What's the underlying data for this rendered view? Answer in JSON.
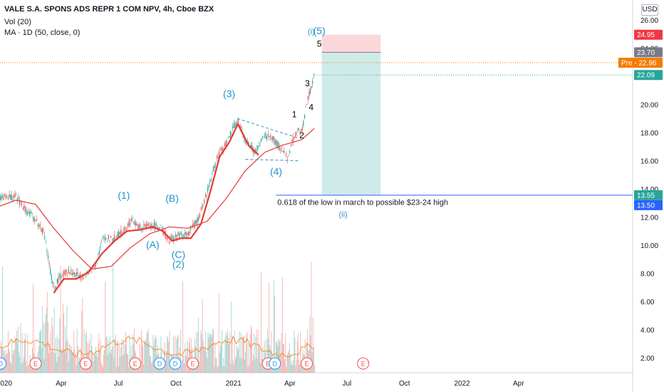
{
  "header": {
    "title": "VALE S.A. SPONS ADS REPR 1 COM NPV, 4h, Cboe BZX",
    "volume_indicator": "Vol (20)",
    "ma_indicator": "MA · 1D (50, close, 0)"
  },
  "currency": "USD",
  "colors": {
    "up": "#26a69a",
    "down": "#ef5350",
    "ma": "#e53935",
    "wave_labels": "#2196c8",
    "pre": "#f57c00",
    "last": "#131722"
  },
  "chart_data": {
    "type": "candlestick",
    "ylim": [
      0.8,
      27.0
    ],
    "y_ticks": [
      "26.00",
      "24.00",
      "22.00",
      "20.00",
      "18.00",
      "16.00",
      "14.00",
      "12.00",
      "10.00",
      "8.00",
      "6.00",
      "4.00",
      "2.00"
    ],
    "x_ticks": [
      "2020",
      "Apr",
      "Jul",
      "Oct",
      "2021",
      "Apr",
      "Jul",
      "Oct",
      "2022",
      "Apr"
    ],
    "x_tick_dates": [
      "2020-01-01",
      "2020-04-01",
      "2020-07-01",
      "2020-10-01",
      "2021-01-01",
      "2021-04-01",
      "2021-07-01",
      "2021-10-01",
      "2022-01-01",
      "2022-04-01"
    ],
    "price_path": [
      {
        "date": "2019-12-20",
        "price": 13.3
      },
      {
        "date": "2020-01-05",
        "price": 13.5
      },
      {
        "date": "2020-01-20",
        "price": 13.4
      },
      {
        "date": "2020-02-05",
        "price": 12.5
      },
      {
        "date": "2020-02-20",
        "price": 11.8
      },
      {
        "date": "2020-03-05",
        "price": 10.8
      },
      {
        "date": "2020-03-15",
        "price": 8.0
      },
      {
        "date": "2020-03-20",
        "price": 6.9
      },
      {
        "date": "2020-03-28",
        "price": 7.6
      },
      {
        "date": "2020-04-10",
        "price": 8.2
      },
      {
        "date": "2020-04-25",
        "price": 7.9
      },
      {
        "date": "2020-05-10",
        "price": 7.8
      },
      {
        "date": "2020-05-25",
        "price": 8.6
      },
      {
        "date": "2020-06-08",
        "price": 10.6
      },
      {
        "date": "2020-06-22",
        "price": 10.4
      },
      {
        "date": "2020-07-08",
        "price": 11.0
      },
      {
        "date": "2020-07-22",
        "price": 11.8
      },
      {
        "date": "2020-08-05",
        "price": 11.2
      },
      {
        "date": "2020-08-20",
        "price": 11.4
      },
      {
        "date": "2020-09-05",
        "price": 11.3
      },
      {
        "date": "2020-09-20",
        "price": 10.4
      },
      {
        "date": "2020-10-05",
        "price": 10.7
      },
      {
        "date": "2020-10-20",
        "price": 10.8
      },
      {
        "date": "2020-11-05",
        "price": 11.8
      },
      {
        "date": "2020-11-20",
        "price": 13.8
      },
      {
        "date": "2020-12-05",
        "price": 16.2
      },
      {
        "date": "2020-12-20",
        "price": 17.2
      },
      {
        "date": "2021-01-07",
        "price": 18.9
      },
      {
        "date": "2021-01-20",
        "price": 17.4
      },
      {
        "date": "2021-02-05",
        "price": 16.6
      },
      {
        "date": "2021-02-20",
        "price": 17.8
      },
      {
        "date": "2021-03-05",
        "price": 17.6
      },
      {
        "date": "2021-03-18",
        "price": 16.8
      },
      {
        "date": "2021-03-28",
        "price": 16.3
      },
      {
        "date": "2021-04-05",
        "price": 17.3
      },
      {
        "date": "2021-04-12",
        "price": 18.2
      },
      {
        "date": "2021-04-20",
        "price": 18.0
      },
      {
        "date": "2021-04-28",
        "price": 20.2
      },
      {
        "date": "2021-05-04",
        "price": 21.0
      },
      {
        "date": "2021-05-10",
        "price": 22.1
      }
    ],
    "ma_path": [
      {
        "date": "2019-12-20",
        "value": 12.7
      },
      {
        "date": "2020-01-20",
        "value": 13.2
      },
      {
        "date": "2020-02-20",
        "value": 12.9
      },
      {
        "date": "2020-03-20",
        "value": 11.2
      },
      {
        "date": "2020-04-20",
        "value": 9.6
      },
      {
        "date": "2020-05-20",
        "value": 8.3
      },
      {
        "date": "2020-06-20",
        "value": 8.5
      },
      {
        "date": "2020-07-20",
        "value": 9.8
      },
      {
        "date": "2020-08-20",
        "value": 10.8
      },
      {
        "date": "2020-09-20",
        "value": 11.3
      },
      {
        "date": "2020-10-20",
        "value": 11.2
      },
      {
        "date": "2020-11-20",
        "value": 11.7
      },
      {
        "date": "2020-12-20",
        "value": 13.3
      },
      {
        "date": "2021-01-20",
        "value": 15.3
      },
      {
        "date": "2021-02-20",
        "value": 16.6
      },
      {
        "date": "2021-03-20",
        "value": 17.1
      },
      {
        "date": "2021-04-20",
        "value": 17.5
      },
      {
        "date": "2021-05-10",
        "value": 18.3
      }
    ],
    "ma_red_smooth_path": [
      {
        "date": "2020-03-20",
        "value": 6.6
      },
      {
        "date": "2020-04-05",
        "value": 7.6
      },
      {
        "date": "2020-04-25",
        "value": 7.6
      },
      {
        "date": "2020-05-15",
        "value": 8.1
      },
      {
        "date": "2020-06-05",
        "value": 9.4
      },
      {
        "date": "2020-06-25",
        "value": 10.3
      },
      {
        "date": "2020-07-15",
        "value": 11.0
      },
      {
        "date": "2020-08-05",
        "value": 11.1
      },
      {
        "date": "2020-08-25",
        "value": 11.3
      },
      {
        "date": "2020-09-10",
        "value": 11.0
      },
      {
        "date": "2020-09-25",
        "value": 10.3
      },
      {
        "date": "2020-10-10",
        "value": 10.5
      },
      {
        "date": "2020-10-25",
        "value": 10.5
      },
      {
        "date": "2020-11-10",
        "value": 11.5
      },
      {
        "date": "2020-11-25",
        "value": 13.8
      },
      {
        "date": "2020-12-10",
        "value": 16.3
      },
      {
        "date": "2020-12-25",
        "value": 17.3
      },
      {
        "date": "2021-01-08",
        "value": 18.6
      },
      {
        "date": "2021-01-25",
        "value": 17.1
      },
      {
        "date": "2021-02-10",
        "value": 16.4
      }
    ],
    "wave_labels": [
      {
        "text": "(1)",
        "date": "2020-07-10",
        "price": 13.3
      },
      {
        "text": "(A)",
        "date": "2020-08-25",
        "price": 9.8
      },
      {
        "text": "(B)",
        "date": "2020-09-25",
        "price": 13.1
      },
      {
        "text": "(C)",
        "date": "2020-10-05",
        "price": 9.1
      },
      {
        "text": "(2)",
        "date": "2020-10-05",
        "price": 8.4
      },
      {
        "text": "(3)",
        "date": "2020-12-25",
        "price": 20.5
      },
      {
        "text": "(4)",
        "date": "2021-03-10",
        "price": 15.0
      },
      {
        "text": "(5)",
        "date": "2021-05-18",
        "price": 25.0
      }
    ],
    "small_wave_labels": [
      {
        "text": "(i)",
        "date": "2021-05-05",
        "price": 25.0
      },
      {
        "text": "(ii)",
        "date": "2021-06-25",
        "price": 12.0
      }
    ],
    "sub_wave_labels": [
      {
        "text": "5",
        "date": "2021-05-18",
        "price": 24.1
      },
      {
        "text": "3",
        "date": "2021-04-29",
        "price": 21.3
      },
      {
        "text": "1",
        "date": "2021-04-08",
        "price": 19.1
      },
      {
        "text": "4",
        "date": "2021-05-05",
        "price": 19.6
      },
      {
        "text": "2",
        "date": "2021-04-20",
        "price": 17.6
      }
    ],
    "position": {
      "start": "2021-05-22",
      "end": "2021-08-24",
      "entry": 23.7,
      "stop": 24.95,
      "target": 13.55
    },
    "horizontal_lines": [
      {
        "price": 13.55,
        "start": "2021-03-10"
      }
    ],
    "annotation": {
      "text": "0.618 of the low in march to possible $23-24 high",
      "date": "2021-03-12",
      "price": 12.85
    },
    "price_labels": [
      {
        "text": "24.95",
        "price": 24.95,
        "color": "#f23645"
      },
      {
        "text": "23.70",
        "price": 23.7,
        "color": "#787b86"
      },
      {
        "text": "Pre - 22.96",
        "price": 22.96,
        "color": "#f57c00"
      },
      {
        "text": "22.09",
        "price": 22.09,
        "color": "#26a69a"
      },
      {
        "text": "13.55",
        "price": 13.55,
        "color": "#26a69a"
      },
      {
        "text": "13.50",
        "price": 13.5,
        "color": "#2962ff"
      }
    ],
    "events": [
      {
        "text": "D",
        "date": "2019-12-26",
        "color": "#2196f3"
      },
      {
        "text": "E",
        "date": "2020-02-20",
        "color": "#ef5350"
      },
      {
        "text": "E",
        "date": "2020-05-10",
        "color": "#ef5350"
      },
      {
        "text": "E",
        "date": "2020-07-28",
        "color": "#ef5350"
      },
      {
        "text": "D",
        "date": "2020-09-05",
        "color": "#2196f3"
      },
      {
        "text": "D",
        "date": "2020-09-30",
        "color": "#2196f3"
      },
      {
        "text": "E",
        "date": "2020-10-28",
        "color": "#ef5350"
      },
      {
        "text": "E",
        "date": "2021-02-25",
        "color": "#ef5350"
      },
      {
        "text": "D",
        "date": "2021-03-08",
        "color": "#2196f3"
      },
      {
        "text": "E",
        "date": "2021-04-28",
        "color": "#ef5350"
      },
      {
        "text": "E",
        "date": "2021-07-27",
        "color": "#ef5350"
      }
    ]
  }
}
